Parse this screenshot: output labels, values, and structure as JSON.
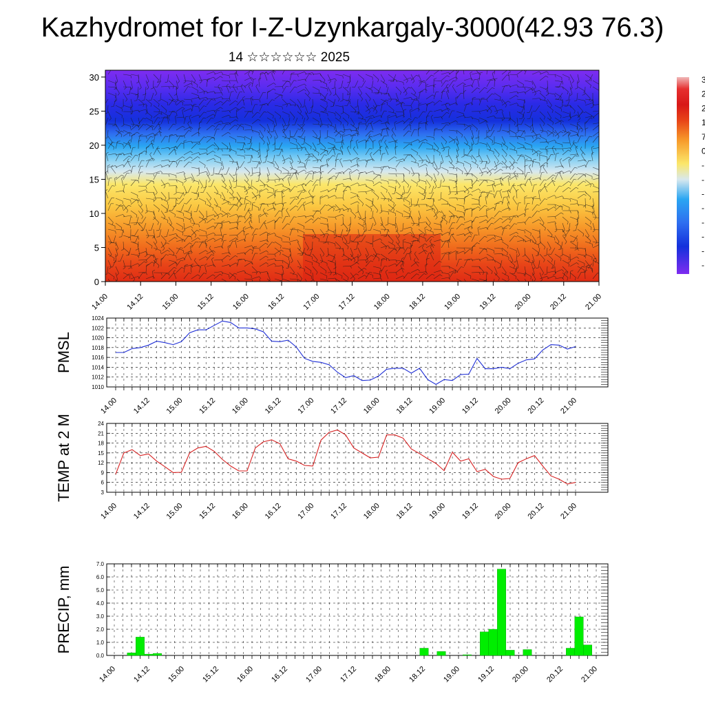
{
  "title": "Kazhydromet for I-Z-Uzynkargaly-3000(42.93 76.3)",
  "subtitle": "14 ☆☆☆☆☆☆ 2025",
  "colors": {
    "pmsl_line": "#1f2fd6",
    "temp_line": "#d62020",
    "precip_bar": "#00ee00",
    "grid": "#000000"
  },
  "colorbar": {
    "labels": [
      "3",
      "2",
      "2",
      "1",
      "7",
      "0",
      "-",
      "-",
      "-",
      "-",
      "-",
      "-",
      "-",
      "-"
    ]
  },
  "chart_data": [
    {
      "type": "heatmap",
      "name": "cross-section",
      "x_ticks": [
        "14.00",
        "14.12",
        "15.00",
        "15.12",
        "16.00",
        "16.12",
        "17.00",
        "17.12",
        "18.00",
        "18.12",
        "19.00",
        "19.12",
        "20.00",
        "20.12",
        "21.00"
      ],
      "y_ticks": [
        "0",
        "5",
        "10",
        "15",
        "20",
        "25",
        "30"
      ],
      "ylim": [
        0,
        31
      ]
    },
    {
      "type": "line",
      "name": "PMSL",
      "ylabel": "PMSL",
      "x_ticks": [
        "14.00",
        "14.12",
        "15.00",
        "15.12",
        "16.00",
        "16.12",
        "17.00",
        "17.12",
        "18.00",
        "18.12",
        "19.00",
        "19.12",
        "20.00",
        "20.12",
        "21.00"
      ],
      "y_ticks": [
        "1010",
        "1012",
        "1014",
        "1016",
        "1018",
        "1020",
        "1022",
        "1024"
      ],
      "ylim": [
        1010,
        1024
      ],
      "grid": true,
      "values": [
        1017.0,
        1017.0,
        1017.8,
        1018.0,
        1018.5,
        1019.3,
        1019.0,
        1018.6,
        1019.2,
        1021.0,
        1021.6,
        1021.6,
        1022.5,
        1023.4,
        1023.1,
        1022.0,
        1022.0,
        1021.8,
        1021.2,
        1019.3,
        1019.2,
        1019.5,
        1018.1,
        1015.8,
        1015.2,
        1015.0,
        1014.5,
        1013.0,
        1011.9,
        1012.3,
        1011.3,
        1011.4,
        1012.2,
        1013.6,
        1013.8,
        1013.8,
        1012.8,
        1013.8,
        1011.5,
        1010.5,
        1011.5,
        1011.3,
        1012.5,
        1012.6,
        1015.8,
        1013.7,
        1013.7,
        1014.0,
        1013.7,
        1014.8,
        1015.5,
        1015.7,
        1017.5,
        1018.6,
        1018.5,
        1017.7,
        1018.2
      ]
    },
    {
      "type": "line",
      "name": "TEMP",
      "ylabel": "TEMP at 2 M",
      "x_ticks": [
        "14.00",
        "14.12",
        "15.00",
        "15.12",
        "16.00",
        "16.12",
        "17.00",
        "17.12",
        "18.00",
        "18.12",
        "19.00",
        "19.12",
        "20.00",
        "20.12",
        "21.00"
      ],
      "y_ticks": [
        "3",
        "6",
        "9",
        "12",
        "15",
        "18",
        "21",
        "24"
      ],
      "ylim": [
        3,
        24
      ],
      "grid": true,
      "values": [
        8.5,
        15.0,
        16.0,
        14.2,
        14.7,
        12.5,
        10.8,
        9.0,
        9.1,
        15.0,
        16.5,
        17.0,
        15.5,
        13.0,
        11.0,
        9.5,
        9.5,
        16.5,
        18.4,
        19.0,
        17.8,
        13.2,
        12.5,
        11.2,
        11.0,
        18.9,
        21.3,
        22.0,
        20.5,
        16.5,
        15.0,
        13.5,
        13.7,
        20.5,
        20.5,
        19.5,
        16.2,
        14.8,
        13.2,
        11.8,
        9.6,
        15.2,
        12.5,
        13.2,
        9.3,
        10.0,
        7.8,
        7.0,
        7.2,
        12.0,
        13.2,
        14.2,
        11.0,
        8.0,
        7.0,
        5.5,
        6.0
      ]
    },
    {
      "type": "bar",
      "name": "PRECIP",
      "ylabel": "PRECIP, mm",
      "x_ticks": [
        "14.00",
        "14.12",
        "15.00",
        "15.12",
        "16.00",
        "16.12",
        "17.00",
        "17.12",
        "18.00",
        "18.12",
        "19.00",
        "19.12",
        "20.00",
        "20.12",
        "21.00"
      ],
      "y_ticks": [
        "0.0",
        "1.0",
        "2.0",
        "3.0",
        "4.0",
        "5.0",
        "6.0",
        "7.0"
      ],
      "ylim": [
        0,
        7
      ],
      "grid": true,
      "values": [
        0,
        0,
        0.2,
        1.4,
        0.1,
        0.15,
        0,
        0,
        0,
        0,
        0,
        0,
        0,
        0,
        0,
        0,
        0,
        0,
        0,
        0,
        0,
        0,
        0,
        0,
        0,
        0,
        0,
        0,
        0,
        0,
        0,
        0,
        0,
        0,
        0,
        0,
        0.55,
        0,
        0.3,
        0,
        0,
        0.05,
        0,
        1.8,
        2.0,
        6.6,
        0.4,
        0,
        0.45,
        0,
        0,
        0,
        0,
        0.55,
        2.95,
        0.8,
        0
      ]
    }
  ]
}
